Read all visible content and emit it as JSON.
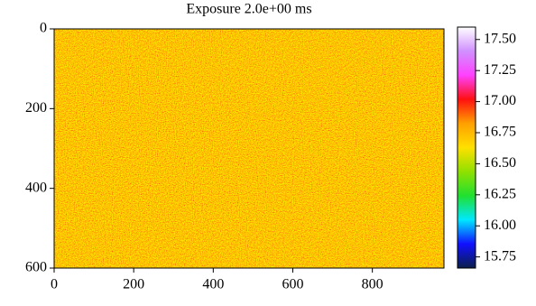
{
  "chart_data": {
    "type": "heatmap",
    "title": "Exposure 2.0e+00 ms",
    "xlim": [
      0,
      980
    ],
    "xticks": [
      0,
      200,
      400,
      600,
      800
    ],
    "ylim": [
      0,
      600
    ],
    "yticks": [
      0,
      200,
      400,
      600
    ],
    "y_inverted": true,
    "colorbar": {
      "lim": [
        15.66,
        17.6
      ],
      "ticks": [
        {
          "value": 15.75,
          "label": "15.75"
        },
        {
          "value": 16.0,
          "label": "16.00"
        },
        {
          "value": 16.25,
          "label": "16.25"
        },
        {
          "value": 16.5,
          "label": "16.50"
        },
        {
          "value": 16.75,
          "label": "16.75"
        },
        {
          "value": 17.0,
          "label": "17.00"
        },
        {
          "value": 17.25,
          "label": "17.25"
        },
        {
          "value": 17.5,
          "label": "17.50"
        }
      ],
      "colormap": [
        "#0b1f4a",
        "#1010ff",
        "#00e8ff",
        "#20e030",
        "#90e000",
        "#ffe000",
        "#ffa000",
        "#ff1010",
        "#ff40ff",
        "#d090ff",
        "#ffffff"
      ]
    }
  }
}
